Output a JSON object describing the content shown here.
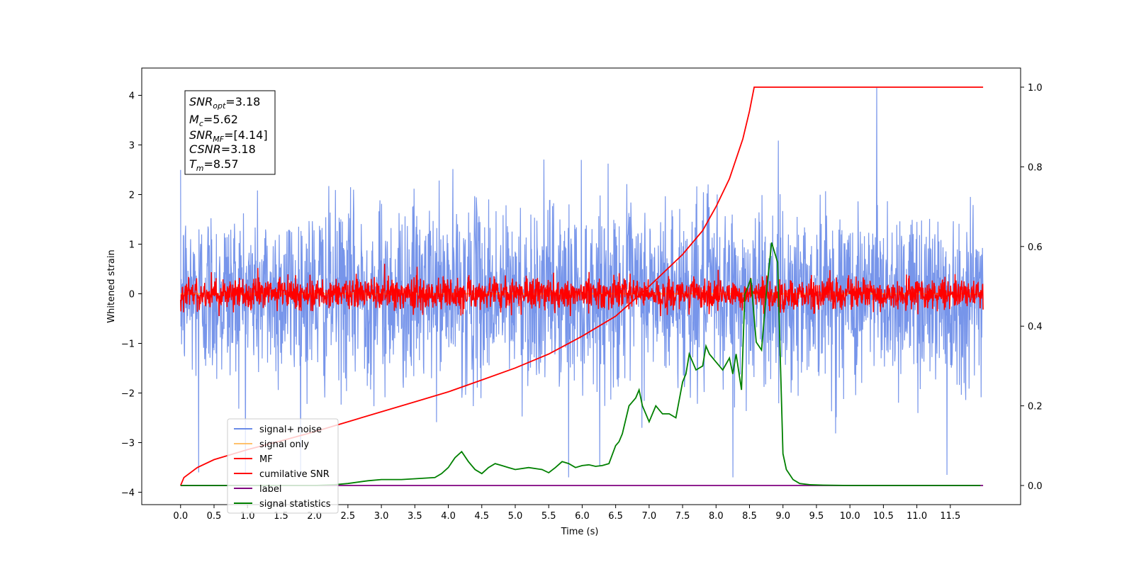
{
  "chart_data": {
    "type": "line",
    "x_axis": {
      "label": "Time (s)",
      "range": [
        -0.58,
        12.55
      ],
      "ticks": [
        0,
        0.5,
        1,
        1.5,
        2,
        2.5,
        3,
        3.5,
        4,
        4.5,
        5,
        5.5,
        6,
        6.5,
        7,
        7.5,
        8,
        8.5,
        9,
        9.5,
        10,
        10.5,
        11,
        11.5
      ],
      "tick_labels": [
        "0.0",
        "0.5",
        "1.0",
        "1.5",
        "2.0",
        "2.5",
        "3.0",
        "3.5",
        "4.0",
        "4.5",
        "5.0",
        "5.5",
        "6.0",
        "6.5",
        "7.0",
        "7.5",
        "8.0",
        "8.5",
        "9.0",
        "9.5",
        "10.0",
        "10.5",
        "11.0",
        "11.5"
      ]
    },
    "y_axis_left": {
      "label": "Whitened strain",
      "range": [
        -4.25,
        4.55
      ],
      "ticks": [
        -4,
        -3,
        -2,
        -1,
        0,
        1,
        2,
        3,
        4
      ],
      "tick_labels": [
        "−4",
        "−3",
        "−2",
        "−1",
        "0",
        "1",
        "2",
        "3",
        "4"
      ]
    },
    "y_axis_right": {
      "label": "",
      "range": [
        -0.048,
        1.048
      ],
      "ticks": [
        0,
        0.2,
        0.4,
        0.6,
        0.8,
        1.0
      ],
      "tick_labels": [
        "0.0",
        "0.2",
        "0.4",
        "0.6",
        "0.8",
        "1.0"
      ]
    },
    "grid": false,
    "legend_position": "lower-left",
    "series": [
      {
        "name": "signal+ noise",
        "color": "#6b8ce8",
        "axis": "left",
        "kind": "noise",
        "x_range": [
          0,
          11.99
        ],
        "center": 0.0,
        "std": 0.9,
        "clip": [
          -3.7,
          4.15
        ],
        "spikes": [
          [
            10.4,
            4.15
          ],
          [
            5.8,
            -3.7
          ],
          [
            8.25,
            -3.7
          ],
          [
            11.45,
            -3.65
          ],
          [
            0.27,
            -3.6
          ]
        ]
      },
      {
        "name": "signal only",
        "color": "#ffb347",
        "axis": "left",
        "kind": "flat",
        "x": [
          0,
          11.99
        ],
        "y": [
          0,
          0
        ]
      },
      {
        "name": "MF",
        "color": "#ff0000",
        "axis": "left",
        "kind": "noise",
        "x_range": [
          0,
          11.99
        ],
        "center": 0.0,
        "std": 0.16,
        "clip": [
          -0.45,
          0.95
        ]
      },
      {
        "name": "cumilative SNR",
        "color": "#ff0000",
        "axis": "right",
        "kind": "line",
        "x": [
          0,
          0.05,
          0.25,
          0.5,
          1.0,
          1.5,
          2.0,
          2.5,
          3.0,
          3.5,
          4.0,
          4.5,
          5.0,
          5.5,
          6.0,
          6.5,
          7.0,
          7.5,
          7.8,
          8.0,
          8.2,
          8.4,
          8.5,
          8.57,
          9.0,
          11.99
        ],
        "y": [
          0.0,
          0.02,
          0.045,
          0.065,
          0.09,
          0.112,
          0.135,
          0.16,
          0.185,
          0.21,
          0.235,
          0.265,
          0.295,
          0.33,
          0.375,
          0.425,
          0.5,
          0.58,
          0.64,
          0.7,
          0.77,
          0.87,
          0.94,
          1.0,
          1.0,
          1.0
        ]
      },
      {
        "name": "label",
        "color": "#800080",
        "axis": "right",
        "kind": "line",
        "x": [
          0,
          11.99
        ],
        "y": [
          0,
          0
        ]
      },
      {
        "name": "signal statistics",
        "color": "#008000",
        "axis": "right",
        "kind": "line",
        "x": [
          0,
          2.0,
          2.3,
          2.5,
          2.8,
          3.0,
          3.3,
          3.5,
          3.8,
          3.9,
          4.0,
          4.1,
          4.2,
          4.3,
          4.4,
          4.5,
          4.6,
          4.7,
          4.8,
          4.9,
          5.0,
          5.2,
          5.4,
          5.5,
          5.6,
          5.7,
          5.8,
          5.9,
          6.0,
          6.1,
          6.2,
          6.3,
          6.4,
          6.5,
          6.55,
          6.6,
          6.7,
          6.8,
          6.85,
          6.9,
          7.0,
          7.1,
          7.2,
          7.3,
          7.4,
          7.5,
          7.55,
          7.6,
          7.7,
          7.8,
          7.85,
          7.9,
          8.0,
          8.1,
          8.2,
          8.25,
          8.3,
          8.38,
          8.43,
          8.48,
          8.52,
          8.6,
          8.68,
          8.75,
          8.83,
          8.92,
          9.0,
          9.05,
          9.15,
          9.25,
          9.4,
          9.6,
          10.0,
          11.0,
          11.95
        ],
        "y": [
          0.0,
          0.0,
          0.002,
          0.005,
          0.012,
          0.015,
          0.015,
          0.017,
          0.02,
          0.03,
          0.045,
          0.07,
          0.085,
          0.06,
          0.04,
          0.03,
          0.045,
          0.055,
          0.05,
          0.045,
          0.04,
          0.045,
          0.04,
          0.032,
          0.045,
          0.06,
          0.055,
          0.045,
          0.05,
          0.052,
          0.048,
          0.05,
          0.055,
          0.1,
          0.11,
          0.13,
          0.2,
          0.22,
          0.24,
          0.2,
          0.16,
          0.2,
          0.18,
          0.18,
          0.17,
          0.26,
          0.28,
          0.33,
          0.29,
          0.3,
          0.35,
          0.33,
          0.31,
          0.29,
          0.32,
          0.28,
          0.33,
          0.24,
          0.48,
          0.5,
          0.52,
          0.36,
          0.34,
          0.48,
          0.61,
          0.56,
          0.08,
          0.04,
          0.015,
          0.005,
          0.002,
          0.001,
          0.0,
          0.0,
          0.0
        ]
      }
    ]
  },
  "stats_box": {
    "lines": [
      {
        "sym": "SNR",
        "sub": "opt",
        "value": "=3.18"
      },
      {
        "sym": "M",
        "sub": "c",
        "value": "=5.62"
      },
      {
        "sym": "SNR",
        "sub": "MF",
        "value": "=[4.14]"
      },
      {
        "sym": "CSNR",
        "sub": "",
        "value": "=3.18"
      },
      {
        "sym": "T",
        "sub": "m",
        "value": "=8.57"
      }
    ]
  }
}
